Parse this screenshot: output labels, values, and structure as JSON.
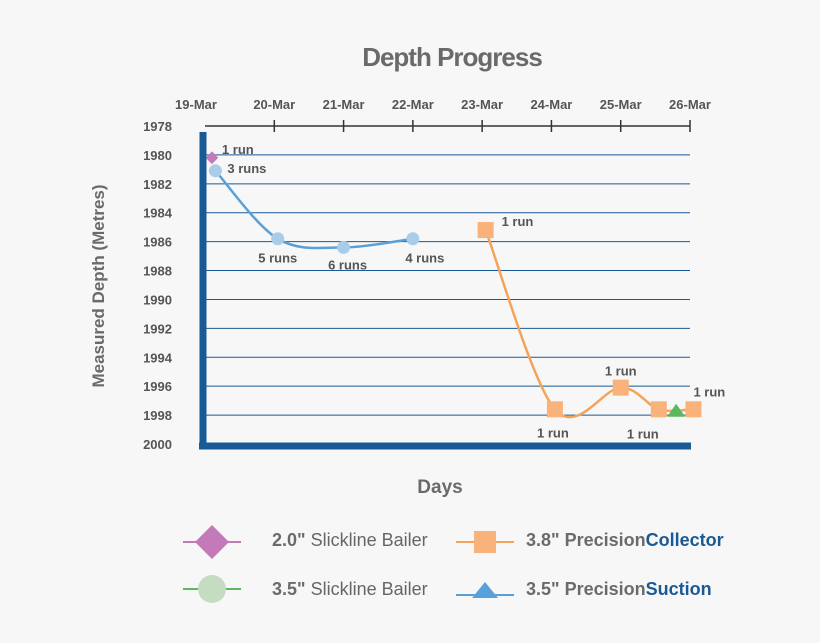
{
  "chart_data": {
    "type": "line",
    "title": "Depth Progress",
    "xlabel": "Days",
    "ylabel": "Measured Depth (Metres)",
    "x_ticks": [
      "19-Mar",
      "20-Mar",
      "21-Mar",
      "22-Mar",
      "23-Mar",
      "24-Mar",
      "25-Mar",
      "26-Mar"
    ],
    "y_ticks": [
      1978,
      1980,
      1982,
      1984,
      1986,
      1988,
      1990,
      1992,
      1994,
      1996,
      1998,
      2000
    ],
    "ylim": [
      1978,
      2000
    ],
    "xlim": [
      0,
      7
    ],
    "colors": {
      "axis": "#1a5a94",
      "grid": "#1a5a94",
      "sb20": "#c47ab8",
      "sb35_marker": "#a9cce8",
      "sb35_line": "#5aa0d8",
      "pc38": "#f3a45a",
      "pc38_marker": "#f8b27a",
      "ps35": "#5cb85c"
    },
    "series": [
      {
        "name": "2.0\" Slickline Bailer",
        "points": [
          {
            "x": 0.1,
            "y": 1980.2,
            "label": "1 run"
          }
        ]
      },
      {
        "name": "3.5\" Slickline Bailer",
        "points": [
          {
            "x": 0.15,
            "y": 1981.1,
            "label": "3 runs"
          },
          {
            "x": 1.05,
            "y": 1985.8,
            "label": "5 runs"
          },
          {
            "x": 2.0,
            "y": 1986.4,
            "label": "6 runs"
          },
          {
            "x": 3.0,
            "y": 1985.8,
            "label": "4 runs"
          }
        ]
      },
      {
        "name": "3.8\" PrecisionCollector",
        "points": [
          {
            "x": 4.05,
            "y": 1985.2,
            "label": "1 run"
          },
          {
            "x": 5.05,
            "y": 1997.6,
            "label": "1 run"
          },
          {
            "x": 6.0,
            "y": 1996.1,
            "label": "1 run"
          },
          {
            "x": 6.55,
            "y": 1997.6,
            "label": "1 run"
          },
          {
            "x": 7.05,
            "y": 1997.6,
            "label": "1 run"
          }
        ]
      },
      {
        "name": "3.5\" PrecisionSuction",
        "points": [
          {
            "x": 6.8,
            "y": 1997.7,
            "label": ""
          }
        ]
      }
    ]
  },
  "legend": {
    "items": [
      {
        "size": "2.0\"",
        "name": "Slickline Bailer",
        "brand_a": "",
        "brand_b": ""
      },
      {
        "size": "3.8\"",
        "name": "",
        "brand_a": "Precision",
        "brand_b": "Collector"
      },
      {
        "size": "3.5\"",
        "name": "Slickline Bailer",
        "brand_a": "",
        "brand_b": ""
      },
      {
        "size": "3.5\"",
        "name": "",
        "brand_a": "Precision",
        "brand_b": "Suction"
      }
    ]
  }
}
